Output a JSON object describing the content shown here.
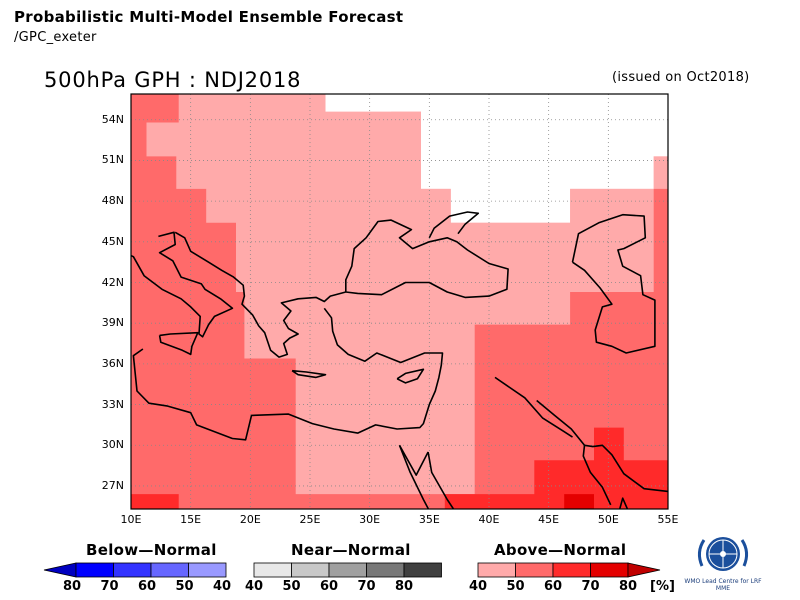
{
  "header": {
    "title": "Probabilistic Multi-Model Ensemble Forecast",
    "subtitle": "/GPC_exeter"
  },
  "map": {
    "title": "500hPa GPH : NDJ2018",
    "issued": "(issued on Oct2018)",
    "lat_labels": [
      "54N",
      "51N",
      "48N",
      "45N",
      "42N",
      "39N",
      "36N",
      "33N",
      "30N",
      "27N"
    ],
    "lon_labels": [
      "10E",
      "15E",
      "20E",
      "25E",
      "30E",
      "35E",
      "40E",
      "45E",
      "50E",
      "55E"
    ],
    "lat_values": [
      54,
      51,
      48,
      45,
      42,
      39,
      36,
      33,
      30,
      27
    ],
    "lon_values": [
      10,
      15,
      20,
      25,
      30,
      35,
      40,
      45,
      50,
      55
    ],
    "extent": {
      "lon_min": 10,
      "lon_max": 55,
      "lat_min": 25.3,
      "lat_max": 55.9
    },
    "colors": {
      "above_40": "#ffaaaa",
      "above_50": "#ff6a6a",
      "above_60": "#ff2a2a",
      "above_70": "#e40000",
      "above_80": "#c00000",
      "coast": "#000000",
      "grid": "#888888"
    }
  },
  "legend": {
    "below": {
      "title": "Below—Normal",
      "ticks": [
        "80",
        "70",
        "60",
        "50",
        "40"
      ],
      "colors": [
        "#0000c0",
        "#0000ff",
        "#3333ff",
        "#6666ff",
        "#9999ff"
      ]
    },
    "near": {
      "title": "Near—Normal",
      "ticks": [
        "40",
        "50",
        "60",
        "70",
        "80"
      ],
      "colors": [
        "#e8e8e8",
        "#c8c8c8",
        "#a0a0a0",
        "#787878",
        "#404040"
      ]
    },
    "above": {
      "title": "Above—Normal",
      "ticks": [
        "40",
        "50",
        "60",
        "70",
        "80"
      ],
      "colors": [
        "#ffaaaa",
        "#ff6a6a",
        "#ff2a2a",
        "#e40000",
        "#c00000"
      ]
    },
    "unit": "[%]"
  },
  "logo": {
    "text": "WMO Lead Centre for LRF MME",
    "icon": "wmo-logo-icon"
  }
}
